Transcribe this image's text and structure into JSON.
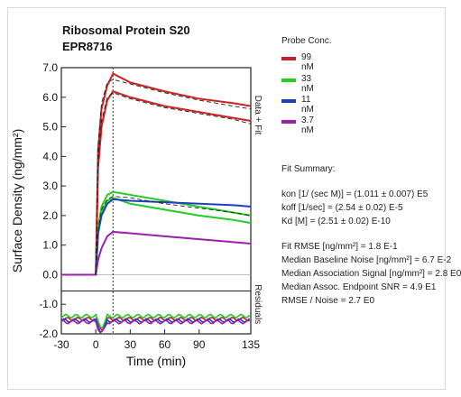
{
  "chart_data": {
    "type": "line",
    "title": "Ribosomal Protein S20",
    "subtitle": "EPR8716",
    "xlabel": "Time (min)",
    "ylabel": "Surface Density (ng/mm²)",
    "right_label_top": "Data + Fit",
    "right_label_bottom": "Residuals",
    "x_ticks": [
      -30,
      0,
      30,
      60,
      90,
      135
    ],
    "x_tick_labels": [
      "-30",
      "0",
      "30",
      "60",
      "90",
      "135"
    ],
    "y_ticks": [
      -2.0,
      -1.0,
      0.0,
      1.0,
      2.0,
      3.0,
      4.0,
      5.0,
      6.0,
      7.0
    ],
    "y_tick_labels": [
      "-2.0",
      "-1.0",
      "0.0",
      "1.0",
      "2.0",
      "3.0",
      "4.0",
      "5.0",
      "6.0",
      "7.0"
    ],
    "xlim": [
      -30,
      135
    ],
    "ylim": [
      -2.0,
      7.0
    ],
    "injection_end_x": 15,
    "legend_title": "Probe Conc.",
    "series": [
      {
        "name": "99 nM",
        "color": "#cc2222",
        "data": [
          [
            -30,
            0
          ],
          [
            0,
            0
          ],
          [
            2,
            4.2
          ],
          [
            5,
            5.6
          ],
          [
            10,
            6.4
          ],
          [
            15,
            6.8
          ],
          [
            30,
            6.5
          ],
          [
            60,
            6.2
          ],
          [
            90,
            5.95
          ],
          [
            120,
            5.8
          ],
          [
            135,
            5.7
          ]
        ]
      },
      {
        "name": "99 nM",
        "color": "#cc2222",
        "data": [
          [
            -30,
            0
          ],
          [
            0,
            0
          ],
          [
            2,
            3.6
          ],
          [
            5,
            5.0
          ],
          [
            10,
            5.9
          ],
          [
            15,
            6.2
          ],
          [
            30,
            6.0
          ],
          [
            60,
            5.7
          ],
          [
            90,
            5.5
          ],
          [
            120,
            5.3
          ],
          [
            135,
            5.2
          ]
        ]
      },
      {
        "name": "33 nM",
        "color": "#22cc22",
        "data": [
          [
            -30,
            0
          ],
          [
            0,
            0
          ],
          [
            2,
            1.6
          ],
          [
            5,
            2.3
          ],
          [
            10,
            2.7
          ],
          [
            15,
            2.8
          ],
          [
            30,
            2.7
          ],
          [
            60,
            2.5
          ],
          [
            90,
            2.3
          ],
          [
            120,
            2.1
          ],
          [
            135,
            2.0
          ]
        ]
      },
      {
        "name": "33 nM",
        "color": "#22cc22",
        "data": [
          [
            -30,
            0
          ],
          [
            0,
            0
          ],
          [
            2,
            1.4
          ],
          [
            5,
            2.1
          ],
          [
            10,
            2.5
          ],
          [
            15,
            2.6
          ],
          [
            30,
            2.4
          ],
          [
            60,
            2.2
          ],
          [
            90,
            2.0
          ],
          [
            120,
            1.85
          ],
          [
            135,
            1.75
          ]
        ]
      },
      {
        "name": "11 nM",
        "color": "#1f3fbf",
        "data": [
          [
            -30,
            0
          ],
          [
            0,
            0
          ],
          [
            2,
            1.4
          ],
          [
            5,
            2.0
          ],
          [
            10,
            2.4
          ],
          [
            15,
            2.55
          ],
          [
            30,
            2.5
          ],
          [
            60,
            2.45
          ],
          [
            90,
            2.4
          ],
          [
            120,
            2.35
          ],
          [
            135,
            2.3
          ]
        ]
      },
      {
        "name": "3.7 nM",
        "color": "#9922aa",
        "data": [
          [
            -30,
            0
          ],
          [
            0,
            0
          ],
          [
            2,
            0.5
          ],
          [
            5,
            0.9
          ],
          [
            10,
            1.3
          ],
          [
            15,
            1.45
          ],
          [
            30,
            1.4
          ],
          [
            60,
            1.3
          ],
          [
            90,
            1.2
          ],
          [
            120,
            1.1
          ],
          [
            135,
            1.05
          ]
        ]
      }
    ],
    "fit_lines": [
      [
        [
          0,
          0
        ],
        [
          2,
          4.4
        ],
        [
          5,
          5.8
        ],
        [
          10,
          6.5
        ],
        [
          15,
          6.6
        ],
        [
          30,
          6.45
        ],
        [
          60,
          6.15
        ],
        [
          90,
          5.9
        ],
        [
          120,
          5.7
        ],
        [
          135,
          5.6
        ]
      ],
      [
        [
          0,
          0
        ],
        [
          2,
          3.8
        ],
        [
          5,
          5.2
        ],
        [
          10,
          6.0
        ],
        [
          15,
          6.15
        ],
        [
          30,
          5.95
        ],
        [
          60,
          5.65
        ],
        [
          90,
          5.45
        ],
        [
          120,
          5.25
        ],
        [
          135,
          5.1
        ]
      ],
      [
        [
          0,
          0
        ],
        [
          2,
          1.5
        ],
        [
          5,
          2.2
        ],
        [
          10,
          2.55
        ],
        [
          15,
          2.65
        ],
        [
          30,
          2.6
        ],
        [
          60,
          2.4
        ],
        [
          90,
          2.25
        ],
        [
          120,
          2.1
        ],
        [
          135,
          2.0
        ]
      ]
    ],
    "residuals": [
      {
        "color": "#cc2222",
        "level": -1.5
      },
      {
        "color": "#22cc22",
        "level": -1.4
      },
      {
        "color": "#1f3fbf",
        "level": -1.55
      },
      {
        "color": "#9922aa",
        "level": -1.6
      }
    ]
  },
  "legend": {
    "title": "Probe Conc.",
    "items": [
      {
        "label": "99 nM",
        "color": "#cc2222"
      },
      {
        "label": "33 nM",
        "color": "#22cc22"
      },
      {
        "label": "11 nM",
        "color": "#1f3fbf"
      },
      {
        "label": "3.7 nM",
        "color": "#9922aa"
      }
    ]
  },
  "fit_summary": {
    "title": "Fit Summary:",
    "kon": "kon  [1/ (sec M)]  =  (1.011 ± 0.007) E5",
    "koff": "koff  [1/sec]  =  (2.54 ± 0.02) E-5",
    "kd": "Kd  [M]  =  (2.51 ± 0.02) E-10",
    "rmse": "Fit RMSE [ng/mm²]  =  1.8 E-1",
    "baseline_noise": "Median Baseline Noise [ng/mm²]  =  6.7 E-2",
    "assoc_signal": "Median Association Signal [ng/mm²]  =  2.8 E0",
    "assoc_snr": "Median Assoc. Endpoint SNR  =  4.9 E1",
    "rmse_noise": "RMSE / Noise  =  2.7 E0"
  }
}
